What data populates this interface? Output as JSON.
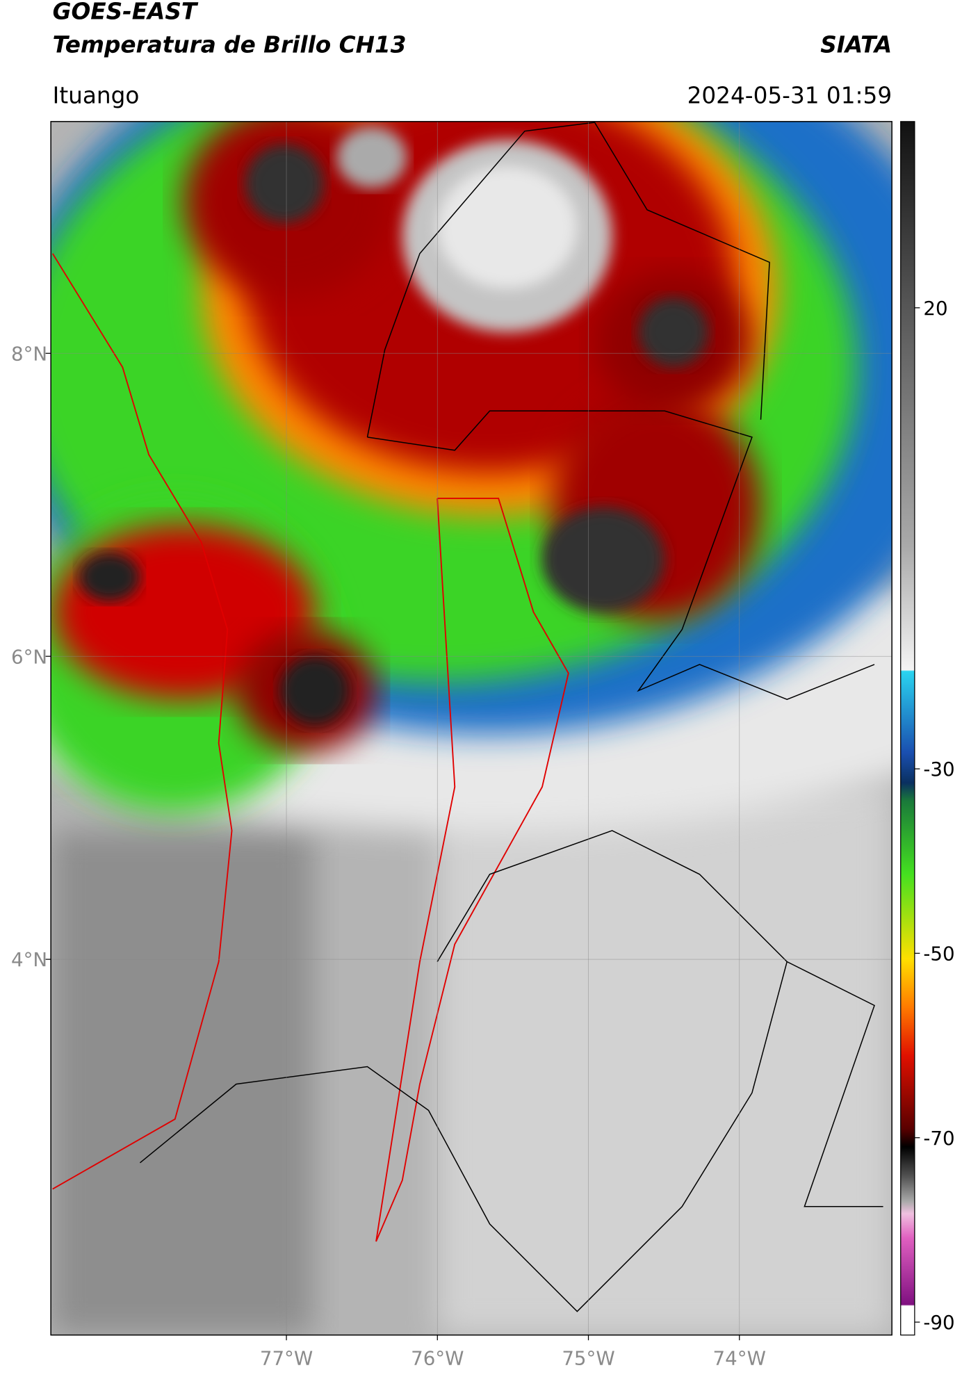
{
  "header": {
    "satellite": "GOES-EAST",
    "product": "Temperatura de Brillo CH13",
    "agency": "SIATA",
    "location": "Ituango",
    "datetime": "2024-05-31 01:59"
  },
  "map": {
    "xlim": [
      -78.56,
      -72.99
    ],
    "ylim": [
      1.52,
      9.53
    ],
    "xticks": [
      {
        "value": -77,
        "label": "77°W"
      },
      {
        "value": -76,
        "label": "76°W"
      },
      {
        "value": -75,
        "label": "75°W"
      },
      {
        "value": -74,
        "label": "74°W"
      }
    ],
    "yticks": [
      {
        "value": 8,
        "label": "8°N"
      },
      {
        "value": 6,
        "label": "6°N"
      },
      {
        "value": 4,
        "label": "4°N"
      }
    ]
  },
  "colorbar": {
    "lim": [
      -91.4,
      40.2
    ],
    "ticks": [
      20,
      -30,
      -50,
      -70,
      -90
    ]
  }
}
